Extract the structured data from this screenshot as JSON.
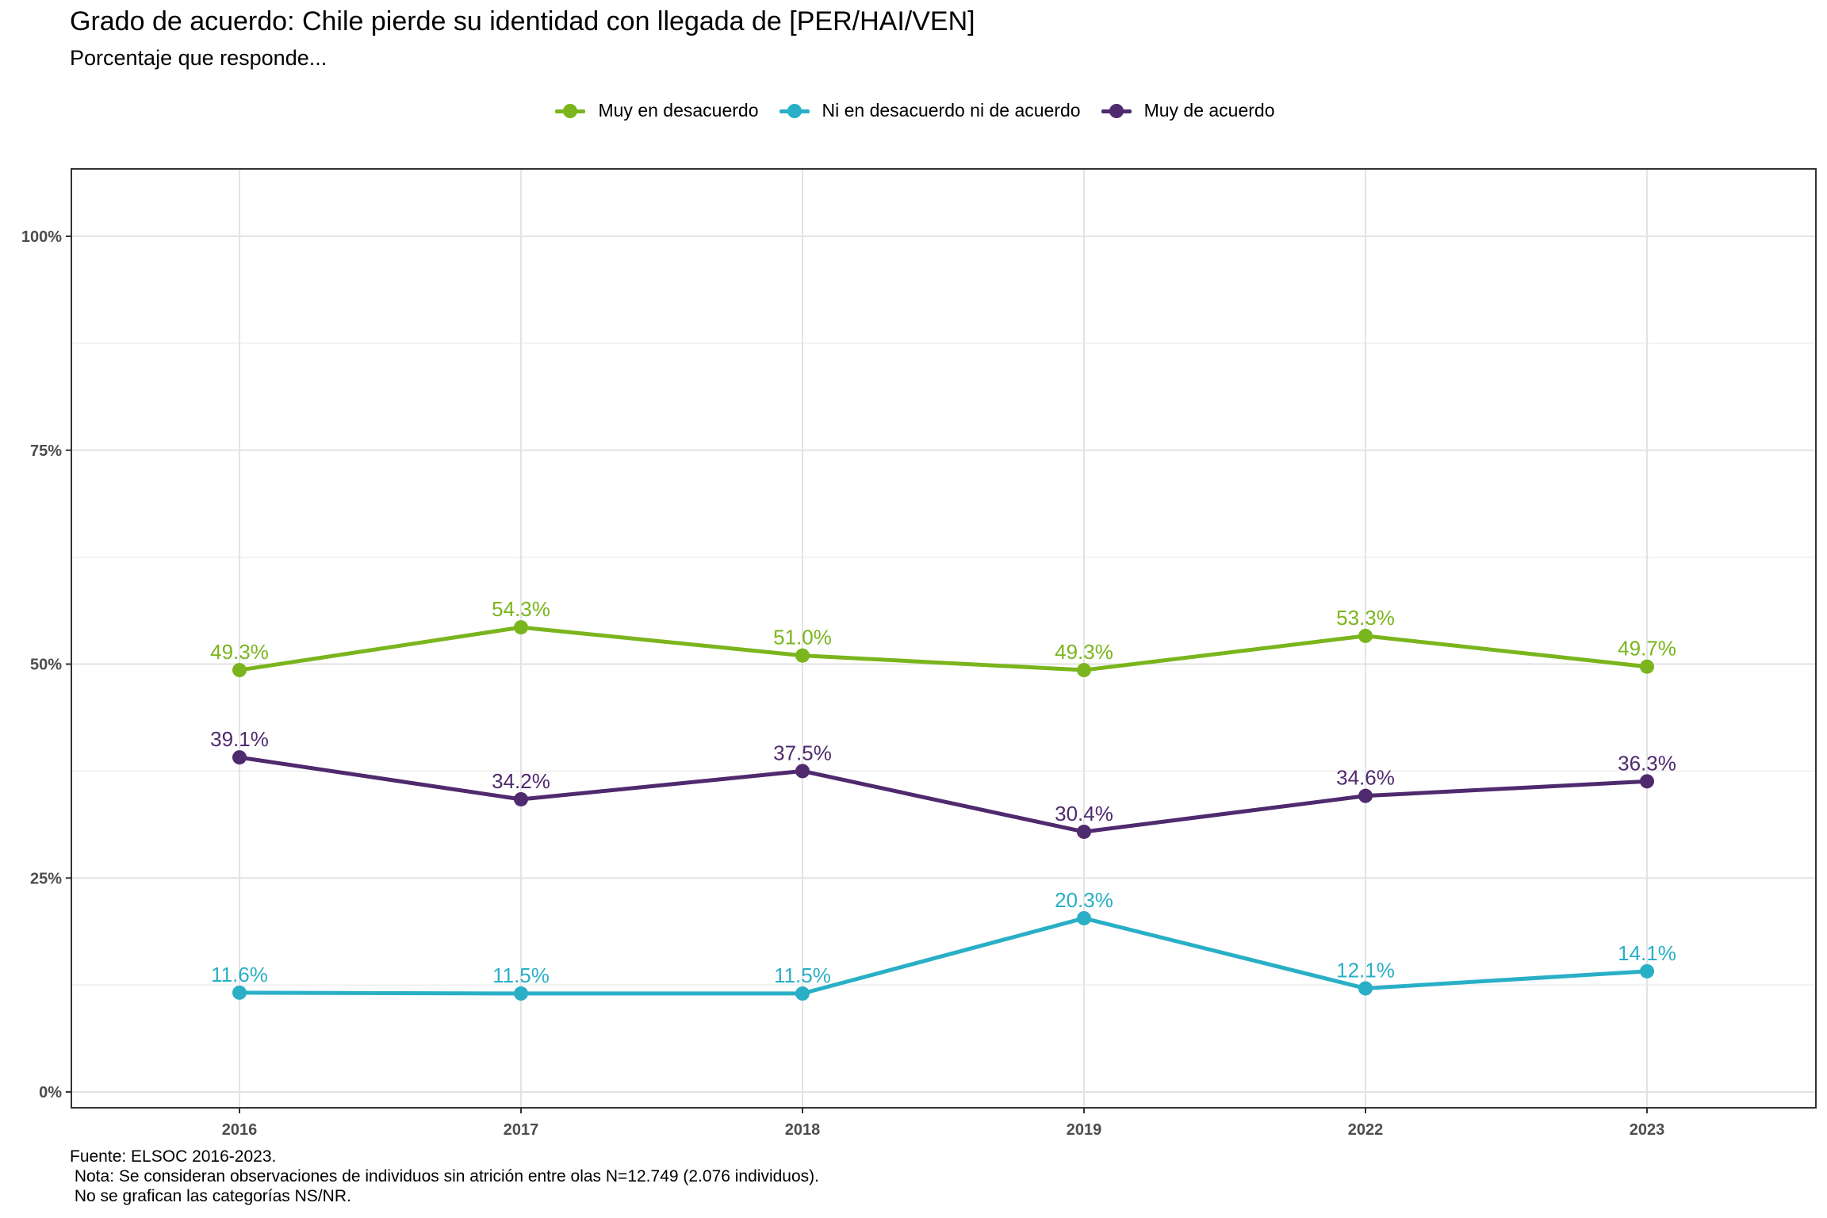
{
  "chart_data": {
    "type": "line",
    "title": "Grado de acuerdo: Chile pierde su identidad con llegada de [PER/HAI/VEN]",
    "subtitle": "Porcentaje que responde...",
    "xlabel": "",
    "ylabel": "",
    "categories": [
      "2016",
      "2017",
      "2018",
      "2019",
      "2022",
      "2023"
    ],
    "ylim": [
      0,
      100
    ],
    "yticks": [
      0,
      25,
      50,
      75,
      100
    ],
    "ytick_labels": [
      "0%",
      "25%",
      "50%",
      "75%",
      "100%"
    ],
    "grid": true,
    "legend_position": "top-center",
    "series": [
      {
        "name": "Muy en desacuerdo",
        "color": "#7ab51d",
        "values": [
          49.3,
          54.3,
          51.0,
          49.3,
          53.3,
          49.7
        ],
        "labels": [
          "49.3%",
          "54.3%",
          "51.0%",
          "49.3%",
          "53.3%",
          "49.7%"
        ]
      },
      {
        "name": "Ni en desacuerdo ni de acuerdo",
        "color": "#29afc6",
        "values": [
          11.6,
          11.5,
          11.5,
          20.3,
          12.1,
          14.1
        ],
        "labels": [
          "11.6%",
          "11.5%",
          "11.5%",
          "20.3%",
          "12.1%",
          "14.1%"
        ]
      },
      {
        "name": "Muy de acuerdo",
        "color": "#4f2a6e",
        "values": [
          39.1,
          34.2,
          37.5,
          30.4,
          34.6,
          36.3
        ],
        "labels": [
          "39.1%",
          "34.2%",
          "37.5%",
          "30.4%",
          "34.6%",
          "36.3%"
        ]
      }
    ],
    "caption": "Fuente: ELSOC 2016-2023.\n Nota: Se consideran observaciones de individuos sin atrición entre olas N=12.749 (2.076 individuos).\n No se grafican las categorías NS/NR."
  }
}
